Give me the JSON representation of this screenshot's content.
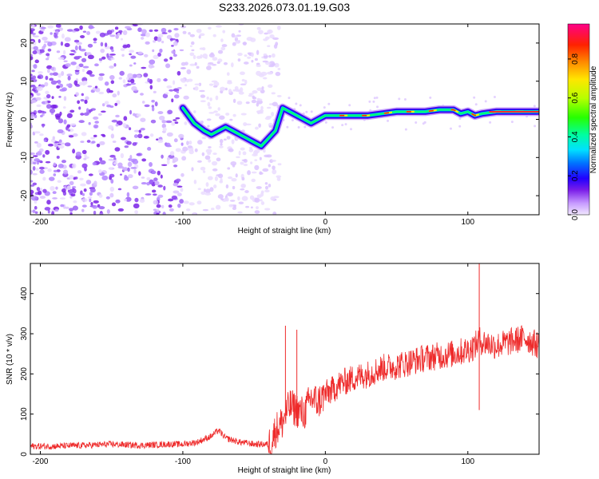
{
  "chart_data": [
    {
      "type": "heatmap",
      "title": "S233.2026.073.01.19.G03",
      "xlabel": "Height of straight line (km)",
      "ylabel": "Frequency (Hz)",
      "xlim": [
        -207,
        150
      ],
      "ylim": [
        -25,
        25
      ],
      "x_ticks": [
        -200,
        -100,
        0,
        100
      ],
      "y_ticks": [
        -20,
        -10,
        0,
        10,
        20
      ],
      "colorbar": {
        "label": "Normalized spectral amplitude",
        "range": [
          0,
          0.98
        ],
        "ticks": [
          0.0,
          0.2,
          0.4,
          0.6,
          0.8
        ],
        "tick_labels": [
          "0.0",
          "0.2",
          "0.4",
          "0.6",
          "0.8"
        ]
      },
      "signal_trace": {
        "x": [
          -100,
          -92,
          -85,
          -80,
          -75,
          -70,
          -65,
          -60,
          -55,
          -50,
          -45,
          -40,
          -35,
          -30,
          -25,
          -20,
          -15,
          -10,
          -5,
          0,
          10,
          20,
          30,
          40,
          50,
          60,
          70,
          80,
          90,
          95,
          100,
          105,
          110,
          120,
          130,
          140,
          150
        ],
        "y": [
          3,
          -1,
          -3,
          -4,
          -3,
          -2,
          -3,
          -4,
          -5,
          -6,
          -7,
          -5,
          -3,
          3,
          2,
          1,
          0,
          -1,
          0,
          1,
          1,
          1,
          1,
          1.5,
          2,
          2,
          2,
          2.5,
          2.5,
          1.5,
          2,
          1,
          1.5,
          2,
          2,
          2,
          2
        ]
      }
    },
    {
      "type": "line",
      "xlabel": "Height of straight line (km)",
      "ylabel": "SNR (10 * v/v)",
      "xlim": [
        -207,
        150
      ],
      "ylim": [
        0,
        475
      ],
      "x_ticks": [
        -200,
        -100,
        0,
        100
      ],
      "y_ticks": [
        0,
        100,
        200,
        300,
        400
      ],
      "color": "#ee2a2a",
      "series": [
        {
          "name": "SNR",
          "x": [
            -207,
            -190,
            -170,
            -150,
            -130,
            -110,
            -100,
            -90,
            -80,
            -75,
            -70,
            -65,
            -60,
            -55,
            -50,
            -40,
            -38,
            -35,
            -30,
            -25,
            -20,
            -15,
            -10,
            -5,
            0,
            5,
            10,
            20,
            30,
            40,
            50,
            60,
            70,
            80,
            90,
            100,
            105,
            108,
            110,
            120,
            130,
            140,
            150
          ],
          "y": [
            20,
            20,
            22,
            25,
            22,
            25,
            25,
            30,
            45,
            60,
            40,
            35,
            30,
            28,
            25,
            25,
            30,
            60,
            80,
            120,
            110,
            100,
            140,
            130,
            150,
            160,
            175,
            190,
            200,
            215,
            220,
            230,
            240,
            245,
            250,
            260,
            270,
            285,
            280,
            270,
            280,
            290,
            270
          ]
        }
      ],
      "spikes": [
        {
          "x": -28,
          "y": 320
        },
        {
          "x": -20,
          "y": 310
        },
        {
          "x": 108,
          "y": 475
        },
        {
          "x": 108,
          "y": 110
        }
      ]
    }
  ]
}
